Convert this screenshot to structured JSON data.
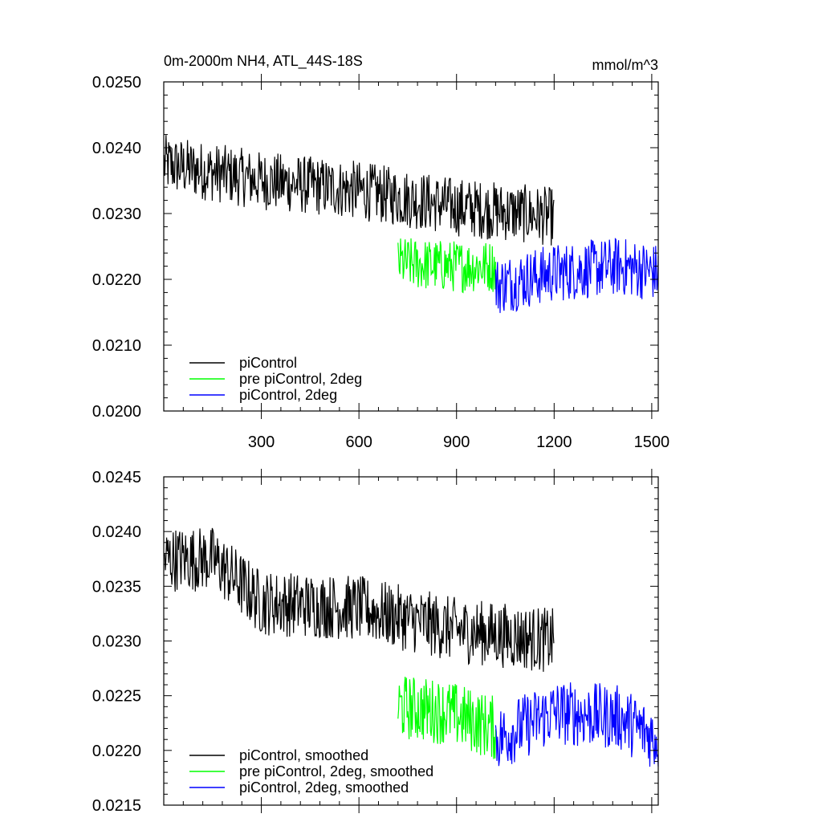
{
  "figure": {
    "title": "0m-2000m NH4, ATL_44S-18S",
    "units": "mmol/m^3"
  },
  "chart_data": [
    {
      "type": "line",
      "title": "0m-2000m NH4, ATL_44S-18S",
      "units": "mmol/m^3",
      "xlim": [
        0,
        1520
      ],
      "ylim": [
        0.02,
        0.025
      ],
      "x_ticks": [
        300,
        600,
        900,
        1200,
        1500
      ],
      "y_ticks": [
        "0.0200",
        "0.0210",
        "0.0220",
        "0.0230",
        "0.0240",
        "0.0250"
      ],
      "legend_position": "bottom-left",
      "series": [
        {
          "name": "piControl",
          "color": "#000000",
          "x_start": 1,
          "x_end": 1200,
          "trend": [
            [
              1,
              0.02375
            ],
            [
              300,
              0.0235
            ],
            [
              600,
              0.02335
            ],
            [
              900,
              0.0231
            ],
            [
              1200,
              0.02295
            ]
          ],
          "noise": 0.00045
        },
        {
          "name": "pre piControl, 2deg",
          "color": "#00ff00",
          "x_start": 720,
          "x_end": 1020,
          "trend": [
            [
              720,
              0.02225
            ],
            [
              870,
              0.0222
            ],
            [
              1020,
              0.0222
            ]
          ],
          "noise": 0.0004
        },
        {
          "name": "piControl, 2deg",
          "color": "#0000ff",
          "x_start": 1020,
          "x_end": 1520,
          "trend": [
            [
              1020,
              0.0219
            ],
            [
              1200,
              0.0221
            ],
            [
              1400,
              0.0222
            ],
            [
              1520,
              0.0221
            ]
          ],
          "noise": 0.00045
        }
      ]
    },
    {
      "type": "line",
      "xlim": [
        0,
        1520
      ],
      "ylim": [
        0.0215,
        0.0245
      ],
      "y_ticks": [
        "0.0215",
        "0.0220",
        "0.0225",
        "0.0230",
        "0.0235",
        "0.0240",
        "0.0245"
      ],
      "legend_position": "bottom-left",
      "series": [
        {
          "name": "piControl, smoothed",
          "color": "#000000",
          "x_start": 1,
          "x_end": 1200,
          "trend": [
            [
              1,
              0.02375
            ],
            [
              150,
              0.02375
            ],
            [
              300,
              0.02335
            ],
            [
              600,
              0.0233
            ],
            [
              900,
              0.0231
            ],
            [
              1200,
              0.023
            ]
          ],
          "noise": 0.0003
        },
        {
          "name": "pre piControl, 2deg, smoothed",
          "color": "#00ff00",
          "x_start": 720,
          "x_end": 1020,
          "trend": [
            [
              720,
              0.0224
            ],
            [
              870,
              0.02235
            ],
            [
              1020,
              0.0222
            ]
          ],
          "noise": 0.0003
        },
        {
          "name": "piControl, 2deg, smoothed",
          "color": "#0000ff",
          "x_start": 1020,
          "x_end": 1520,
          "trend": [
            [
              1020,
              0.0221
            ],
            [
              1200,
              0.02235
            ],
            [
              1400,
              0.0223
            ],
            [
              1520,
              0.0221
            ]
          ],
          "noise": 0.0003
        }
      ]
    }
  ]
}
